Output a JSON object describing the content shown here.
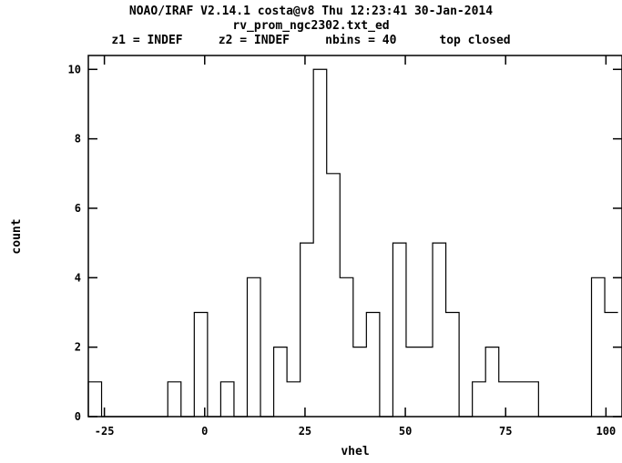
{
  "header": {
    "line1": "NOAO/IRAF V2.14.1 costa@v8 Thu 12:23:41 30-Jan-2014",
    "line2": "rv_prom_ngc2302.txt_ed",
    "line3": "z1 = INDEF     z2 = INDEF     nbins = 40      top closed"
  },
  "chart_data": {
    "type": "bar",
    "subtype": "histogram-step",
    "xlabel": "vhel",
    "ylabel": "count",
    "xlim": [
      -29,
      104
    ],
    "ylim": [
      0,
      10.4
    ],
    "xticks": [
      -25,
      0,
      25,
      50,
      75,
      100
    ],
    "yticks": [
      0,
      2,
      4,
      6,
      8,
      10
    ],
    "bin_width": 3.3,
    "bin_start": -29,
    "counts": [
      1,
      0,
      0,
      0,
      0,
      0,
      1,
      0,
      3,
      0,
      1,
      0,
      4,
      0,
      2,
      1,
      5,
      10,
      7,
      4,
      2,
      3,
      0,
      5,
      2,
      2,
      5,
      3,
      0,
      1,
      2,
      1,
      1,
      1,
      0,
      0,
      0,
      0,
      4,
      3
    ],
    "grid": false,
    "line_color": "#000000"
  }
}
